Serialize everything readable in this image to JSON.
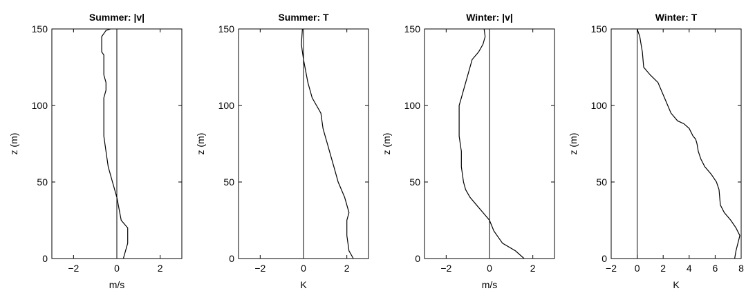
{
  "chart_data": [
    {
      "type": "line",
      "title": "Summer: |v|",
      "xlabel": "m/s",
      "ylabel": "z (m)",
      "xlim": [
        -3,
        3
      ],
      "ylim": [
        0,
        150
      ],
      "xticks": [
        -2,
        0,
        2
      ],
      "yticks": [
        0,
        50,
        100,
        150
      ],
      "xtick_labels": [
        "−2",
        "0",
        "2"
      ],
      "ytick_labels": [
        "0",
        "50",
        "100",
        "150"
      ],
      "grid": false,
      "reference_line_x": 0,
      "series": [
        {
          "x": [
            0.3,
            0.5,
            0.5,
            0.2,
            0.0,
            -0.2,
            -0.4,
            -0.5,
            -0.6,
            -0.6,
            -0.6,
            -0.6,
            -0.5,
            -0.5,
            -0.6,
            -0.6,
            -0.6,
            -0.7,
            -0.7,
            -0.7,
            -0.6,
            -0.5,
            -0.3
          ],
          "y": [
            0,
            10,
            20,
            25,
            40,
            50,
            60,
            70,
            80,
            90,
            100,
            105,
            110,
            115,
            120,
            130,
            133,
            135,
            140,
            145,
            147,
            149,
            150
          ]
        }
      ]
    },
    {
      "type": "line",
      "title": "Summer: T",
      "xlabel": "K",
      "ylabel": "z (m)",
      "xlim": [
        -3,
        3
      ],
      "ylim": [
        0,
        150
      ],
      "xticks": [
        -2,
        0,
        2
      ],
      "yticks": [
        0,
        50,
        100,
        150
      ],
      "xtick_labels": [
        "−2",
        "0",
        "2"
      ],
      "ytick_labels": [
        "0",
        "50",
        "100",
        "150"
      ],
      "grid": false,
      "reference_line_x": 0,
      "series": [
        {
          "x": [
            2.3,
            2.1,
            2.0,
            2.0,
            2.1,
            1.9,
            1.6,
            1.4,
            1.2,
            1.1,
            1.0,
            0.9,
            0.8,
            0.6,
            0.4,
            0.2,
            0.0,
            -0.05,
            -0.1,
            -0.05
          ],
          "y": [
            0,
            5,
            15,
            25,
            30,
            40,
            50,
            60,
            70,
            75,
            80,
            85,
            95,
            100,
            105,
            115,
            130,
            135,
            140,
            150
          ]
        }
      ]
    },
    {
      "type": "line",
      "title": "Winter: |v|",
      "xlabel": "m/s",
      "ylabel": "z (m)",
      "xlim": [
        -3,
        3
      ],
      "ylim": [
        0,
        150
      ],
      "xticks": [
        -2,
        0,
        2
      ],
      "yticks": [
        0,
        50,
        100,
        150
      ],
      "xtick_labels": [
        "−2",
        "0",
        "2"
      ],
      "ytick_labels": [
        "0",
        "50",
        "100",
        "150"
      ],
      "grid": false,
      "reference_line_x": 0,
      "series": [
        {
          "x": [
            1.6,
            1.2,
            0.6,
            0.2,
            0.0,
            -0.3,
            -0.6,
            -0.9,
            -1.1,
            -1.2,
            -1.3,
            -1.3,
            -1.3,
            -1.4,
            -1.4,
            -1.4,
            -1.3,
            -1.2,
            -1.0,
            -0.8,
            -0.5,
            -0.3,
            -0.2,
            -0.25
          ],
          "y": [
            0,
            5,
            10,
            18,
            25,
            30,
            35,
            40,
            45,
            50,
            60,
            65,
            70,
            80,
            90,
            100,
            105,
            110,
            120,
            130,
            135,
            140,
            145,
            150
          ]
        }
      ]
    },
    {
      "type": "line",
      "title": "Winter: T",
      "xlabel": "K",
      "ylabel": "z (m)",
      "xlim": [
        -2,
        8
      ],
      "ylim": [
        0,
        150
      ],
      "xticks": [
        -2,
        0,
        2,
        4,
        6,
        8
      ],
      "yticks": [
        0,
        50,
        100,
        150
      ],
      "xtick_labels": [
        "−2",
        "0",
        "2",
        "4",
        "6",
        "8"
      ],
      "ytick_labels": [
        "0",
        "50",
        "100",
        "150"
      ],
      "grid": false,
      "reference_line_x": 0,
      "series": [
        {
          "x": [
            7.5,
            7.6,
            7.9,
            7.6,
            7.2,
            6.7,
            6.4,
            6.3,
            6.1,
            5.7,
            5.2,
            4.9,
            4.7,
            4.6,
            4.5,
            4.3,
            4.0,
            3.6,
            3.1,
            2.6,
            2.1,
            1.6,
            1.0,
            0.5,
            0.4,
            0.3,
            0.2,
            0.0
          ],
          "y": [
            0,
            5,
            15,
            20,
            25,
            30,
            35,
            45,
            50,
            55,
            60,
            65,
            70,
            75,
            78,
            80,
            85,
            88,
            90,
            95,
            105,
            115,
            120,
            125,
            135,
            140,
            145,
            150
          ]
        }
      ]
    }
  ]
}
